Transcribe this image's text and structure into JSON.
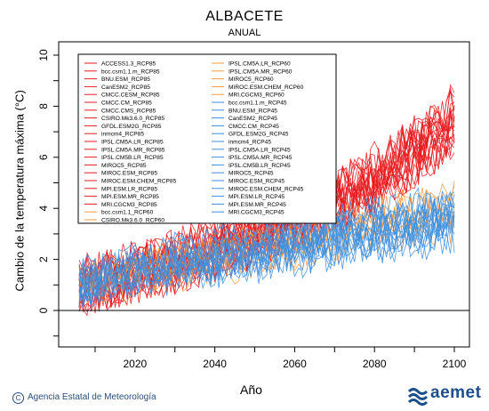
{
  "header": {
    "title": "ALBACETE",
    "subtitle": "ANUAL"
  },
  "footer": {
    "agency": "Agencia Estatal de Meteorología",
    "brand": "aemet"
  },
  "chart_data": {
    "type": "line",
    "xlabel": "Año",
    "ylabel": "Cambio de la temperatura máxima (°C)",
    "xlim": [
      2006,
      2100
    ],
    "ylim": [
      -1.5,
      10.5
    ],
    "xticks": [
      2020,
      2040,
      2060,
      2080,
      2100
    ],
    "yticks": [
      0,
      2,
      4,
      6,
      8,
      10
    ],
    "zero_line": true,
    "legend_position": "top-left",
    "legend_col1": [
      "ACCESS1.3_RCP85",
      "bcc.csm1.1.m_RCP85",
      "BNU.ESM_RCP85",
      "CanESM2_RCP85",
      "CMCC.CESM_RCP85",
      "CMCC.CM_RCP85",
      "CMCC.CMS_RCP85",
      "CSIRO.Mk3.6.0_RCP85",
      "GFDL.ESM2G_RCP85",
      "inmcm4_RCP85",
      "IPSL.CM5A.LR_RCP85",
      "IPSL.CM5A.MR_RCP85",
      "IPSL.CM5B.LR_RCP85",
      "MIROC5_RCP85",
      "MIROC.ESM_RCP85",
      "MIROC.ESM.CHEM_RCP85",
      "MPI.ESM.LR_RCP85",
      "MPI.ESM.MR_RCP85",
      "MRI.CGCM3_RCP85",
      "bcc.csm1.1_RCP60",
      "CSIRO.Mk3.6.0_RCP60"
    ],
    "legend_col2": [
      "IPSL.CM5A.LR_RCP60",
      "IPSL.CM5A.MR_RCP60",
      "MIROC5_RCP60",
      "MIROC.ESM.CHEM_RCP60",
      "MRI.CGCM3_RCP60",
      "bcc.csm1.1.m_RCP45",
      "BNU.ESM_RCP45",
      "CanESM2_RCP45",
      "CMCC.CM_RCP45",
      "GFDL.ESM2G_RCP45",
      "inmcm4_RCP45",
      "IPSL.CM5A.LR_RCP45",
      "IPSL.CM5A.MR_RCP45",
      "IPSL.CM5B.LR_RCP45",
      "MIROC5_RCP45",
      "MIROC.ESM_RCP45",
      "MIROC.ESM.CHEM_RCP45",
      "MPI.ESM.LR_RCP45",
      "MPI.ESM.MR_RCP45",
      "MRI.CGCM3_RCP45"
    ],
    "scenario_colors": {
      "RCP85": "#e8191e",
      "RCP60": "#f59a40",
      "RCP45": "#3d8fe0"
    },
    "series_trends": {
      "RCP85": {
        "count": 19,
        "points": [
          [
            2006,
            1.0
          ],
          [
            2030,
            2.0
          ],
          [
            2060,
            3.6
          ],
          [
            2080,
            5.2
          ],
          [
            2100,
            7.6
          ]
        ],
        "spread": 1.0
      },
      "RCP60": {
        "count": 7,
        "points": [
          [
            2006,
            1.0
          ],
          [
            2030,
            1.8
          ],
          [
            2060,
            2.6
          ],
          [
            2080,
            3.4
          ],
          [
            2100,
            4.0
          ]
        ],
        "spread": 0.8
      },
      "RCP45": {
        "count": 15,
        "points": [
          [
            2006,
            1.0
          ],
          [
            2030,
            1.8
          ],
          [
            2060,
            2.5
          ],
          [
            2080,
            3.1
          ],
          [
            2100,
            3.5
          ]
        ],
        "spread": 0.9
      }
    }
  }
}
